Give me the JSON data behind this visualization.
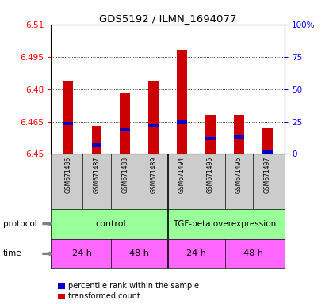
{
  "title": "GDS5192 / ILMN_1694077",
  "samples": [
    "GSM671486",
    "GSM671487",
    "GSM671488",
    "GSM671489",
    "GSM671494",
    "GSM671495",
    "GSM671496",
    "GSM671497"
  ],
  "bar_values": [
    6.484,
    6.463,
    6.478,
    6.484,
    6.498,
    6.468,
    6.468,
    6.462
  ],
  "blue_values": [
    6.464,
    6.454,
    6.461,
    6.463,
    6.465,
    6.457,
    6.458,
    6.451
  ],
  "y_min": 6.45,
  "y_max": 6.51,
  "y_ticks": [
    6.45,
    6.465,
    6.48,
    6.495,
    6.51
  ],
  "y_tick_labels": [
    "6.45",
    "6.465",
    "6.48",
    "6.495",
    "6.51"
  ],
  "y2_ticks": [
    0,
    25,
    50,
    75,
    100
  ],
  "y2_tick_labels": [
    "0",
    "25",
    "50",
    "75",
    "100%"
  ],
  "bar_color": "#cc0000",
  "blue_color": "#0000cc",
  "bar_width": 0.35,
  "protocol_labels": [
    "control",
    "TGF-beta overexpression"
  ],
  "protocol_color": "#99ff99",
  "time_labels": [
    "24 h",
    "48 h",
    "24 h",
    "48 h"
  ],
  "time_color": "#ff66ff",
  "sample_bg": "#cccccc",
  "legend_items": [
    "transformed count",
    "percentile rank within the sample"
  ],
  "legend_colors": [
    "#cc0000",
    "#0000cc"
  ]
}
